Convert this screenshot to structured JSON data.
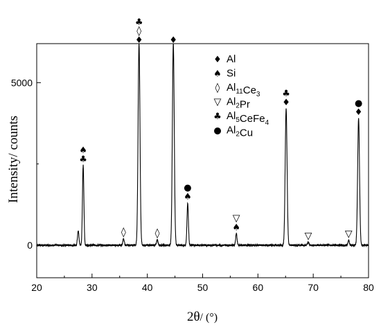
{
  "chart_data": {
    "type": "line",
    "xlabel_main": "2θ",
    "xlabel_unit": "/ (°)",
    "ylabel": "Intensity/ counts",
    "xlim": [
      20,
      80
    ],
    "ylim": [
      -1000,
      6200
    ],
    "x_ticks": [
      20,
      30,
      40,
      50,
      60,
      70,
      80
    ],
    "y_ticks": [
      0,
      5000
    ],
    "grid": false,
    "legend_position": "top-right",
    "legend": [
      {
        "symbol": "♦",
        "symbol_name": "diamond-filled-icon",
        "parts": [
          [
            "Al",
            ""
          ]
        ]
      },
      {
        "symbol": "♠",
        "symbol_name": "spade-icon",
        "parts": [
          [
            "Si",
            ""
          ]
        ]
      },
      {
        "symbol": "◊",
        "symbol_name": "diamond-outline-icon",
        "parts": [
          [
            "Al",
            "11"
          ],
          [
            "Ce",
            "3"
          ]
        ]
      },
      {
        "symbol": "▽",
        "symbol_name": "triangle-down-outline-icon",
        "parts": [
          [
            "Al",
            "2"
          ],
          [
            "Pr",
            ""
          ]
        ]
      },
      {
        "symbol": "♣",
        "symbol_name": "club-icon",
        "parts": [
          [
            "Al",
            "5"
          ],
          [
            "CeFe",
            "4"
          ]
        ]
      },
      {
        "symbol": "●",
        "symbol_name": "dot-filled-icon",
        "parts": [
          [
            "Al",
            "2"
          ],
          [
            "Cu",
            ""
          ]
        ]
      }
    ],
    "peaks": [
      {
        "x": 27.5,
        "y": 450
      },
      {
        "x": 28.4,
        "y": 2450
      },
      {
        "x": 35.7,
        "y": 200
      },
      {
        "x": 38.5,
        "y": 6200
      },
      {
        "x": 41.8,
        "y": 170
      },
      {
        "x": 44.7,
        "y": 6200
      },
      {
        "x": 47.3,
        "y": 1300
      },
      {
        "x": 56.1,
        "y": 350
      },
      {
        "x": 65.1,
        "y": 4200
      },
      {
        "x": 69.1,
        "y": 90
      },
      {
        "x": 76.4,
        "y": 150
      },
      {
        "x": 78.2,
        "y": 3900
      }
    ],
    "peak_markers": [
      {
        "x": 28.4,
        "symbols": [
          "♠",
          "♣"
        ]
      },
      {
        "x": 35.7,
        "symbols": [
          "◊"
        ]
      },
      {
        "x": 38.5,
        "symbols": [
          "♣",
          "◊",
          "♦"
        ]
      },
      {
        "x": 41.8,
        "symbols": [
          "◊"
        ]
      },
      {
        "x": 44.7,
        "symbols": [
          "♦"
        ]
      },
      {
        "x": 47.3,
        "symbols": [
          "●",
          "♠"
        ]
      },
      {
        "x": 56.1,
        "symbols": [
          "▽",
          "♠"
        ]
      },
      {
        "x": 65.1,
        "symbols": [
          "♣",
          "♦"
        ]
      },
      {
        "x": 69.1,
        "symbols": [
          "▽"
        ]
      },
      {
        "x": 76.4,
        "symbols": [
          "▽"
        ]
      },
      {
        "x": 78.2,
        "symbols": [
          "●",
          "♦"
        ]
      }
    ]
  }
}
